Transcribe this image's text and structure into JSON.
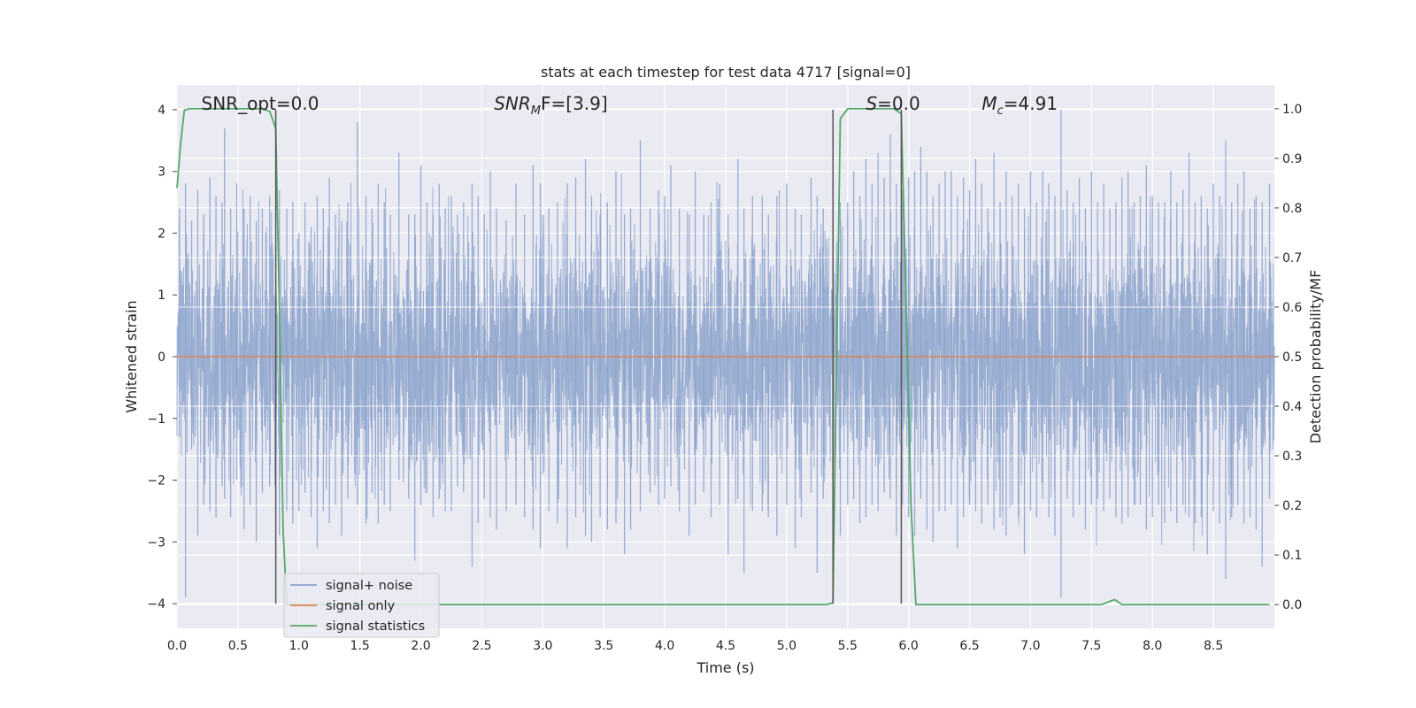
{
  "chart_data": {
    "type": "line",
    "title": "stats at each timestep for test data 4717 [signal=0]",
    "xlabel": "Time (s)",
    "ylabel_left": "Whitened strain",
    "ylabel_right": "Detection probability/MF",
    "xlim": [
      0,
      9
    ],
    "ylim_left": [
      -4.4,
      4.4
    ],
    "ylim_right": [
      -0.048,
      1.048
    ],
    "x_ticks": [
      "0.0",
      "0.5",
      "1.0",
      "1.5",
      "2.0",
      "2.5",
      "3.0",
      "3.5",
      "4.0",
      "4.5",
      "5.0",
      "5.5",
      "6.0",
      "6.5",
      "7.0",
      "7.5",
      "8.0",
      "8.5"
    ],
    "y_ticks_left": [
      "4",
      "3",
      "2",
      "1",
      "0",
      "−1",
      "−2",
      "−3",
      "−4"
    ],
    "y_ticks_right": [
      "1.0",
      "0.9",
      "0.8",
      "0.7",
      "0.6",
      "0.5",
      "0.4",
      "0.3",
      "0.2",
      "0.1",
      "0.0"
    ],
    "grid": true,
    "legend_position": "lower-left",
    "annotations": [
      {
        "main": "SNR_opt=0.0",
        "sub": "",
        "tail": "",
        "italic": false,
        "x": 0.2
      },
      {
        "main": "SNR",
        "sub": "M",
        "tail": "F=[3.9]",
        "italic": true,
        "x": 2.6
      },
      {
        "main": "S",
        "sub": "",
        "tail": "=0.0",
        "italic": true,
        "x": 5.65
      },
      {
        "main": "M",
        "sub": "c",
        "tail": "=4.91",
        "italic": true,
        "x": 6.6
      }
    ],
    "vlines": [
      {
        "x": 0.81,
        "ymin": -4,
        "ymax": 4
      },
      {
        "x": 5.38,
        "ymin": -4,
        "ymax": 4
      },
      {
        "x": 5.94,
        "ymin": -4,
        "ymax": 4
      }
    ],
    "series": [
      {
        "name": "signal+ noise",
        "color": "#8da4cd",
        "note_values": "dense white-noise trace, sample of envelope",
        "values": [
          [
            0.02,
            2.4,
            -1.3
          ],
          [
            0.07,
            2.8,
            -3.9
          ],
          [
            0.12,
            2.2,
            -1.5
          ],
          [
            0.17,
            2.7,
            -2.9
          ],
          [
            0.22,
            2.3,
            -2.4
          ],
          [
            0.27,
            2.9,
            -2.5
          ],
          [
            0.32,
            2.6,
            -2.6
          ],
          [
            0.37,
            2.5,
            -2.1
          ],
          [
            0.39,
            3.7,
            -2.3
          ],
          [
            0.44,
            2.4,
            -2.6
          ],
          [
            0.49,
            2.8,
            -2.0
          ],
          [
            0.55,
            2.4,
            -2.8
          ],
          [
            0.6,
            2.6,
            -2.4
          ],
          [
            0.65,
            2.2,
            -3.0
          ],
          [
            0.7,
            2.4,
            -2.2
          ],
          [
            0.76,
            2.6,
            -2.1
          ],
          [
            0.84,
            2.7,
            -2.9
          ],
          [
            0.9,
            2.4,
            -2.5
          ],
          [
            0.95,
            2.5,
            -2.7
          ],
          [
            1.0,
            2.0,
            -2.5
          ],
          [
            1.05,
            2.5,
            -2.2
          ],
          [
            1.1,
            2.1,
            -2.6
          ],
          [
            1.15,
            2.6,
            -3.1
          ],
          [
            1.2,
            2.4,
            -2.5
          ],
          [
            1.25,
            2.9,
            -2.7
          ],
          [
            1.3,
            2.3,
            -2.4
          ],
          [
            1.35,
            2.2,
            -2.9
          ],
          [
            1.4,
            2.5,
            -2.3
          ],
          [
            1.48,
            3.8,
            -2.4
          ],
          [
            1.55,
            2.6,
            -2.7
          ],
          [
            1.6,
            2.4,
            -2.2
          ],
          [
            1.65,
            2.8,
            -2.7
          ],
          [
            1.7,
            2.5,
            -2.4
          ],
          [
            1.75,
            2.3,
            -2.5
          ],
          [
            1.82,
            3.3,
            -2.0
          ],
          [
            1.9,
            2.3,
            -2.3
          ],
          [
            1.95,
            2.3,
            -3.3
          ],
          [
            2.0,
            3.1,
            -2.4
          ],
          [
            2.05,
            2.5,
            -2.2
          ],
          [
            2.1,
            2.3,
            -2.6
          ],
          [
            2.15,
            2.8,
            -2.3
          ],
          [
            2.2,
            2.4,
            -2.5
          ],
          [
            2.25,
            2.6,
            -2.5
          ],
          [
            2.3,
            2.3,
            -2.1
          ],
          [
            2.35,
            2.5,
            -2.2
          ],
          [
            2.42,
            2.8,
            -3.4
          ],
          [
            2.47,
            2.6,
            -2.7
          ],
          [
            2.52,
            2.3,
            -2.3
          ],
          [
            2.57,
            3.0,
            -2.6
          ],
          [
            2.62,
            2.4,
            -2.8
          ],
          [
            2.7,
            2.2,
            -2.5
          ],
          [
            2.78,
            2.8,
            -2.4
          ],
          [
            2.85,
            2.3,
            -2.6
          ],
          [
            2.92,
            3.1,
            -2.8
          ],
          [
            2.98,
            2.8,
            -3.1
          ],
          [
            3.05,
            2.4,
            -2.5
          ],
          [
            3.12,
            2.5,
            -2.7
          ],
          [
            3.2,
            2.8,
            -3.1
          ],
          [
            3.27,
            2.9,
            -2.6
          ],
          [
            3.35,
            3.2,
            -2.9
          ],
          [
            3.4,
            2.6,
            -3.0
          ],
          [
            3.47,
            2.3,
            -2.6
          ],
          [
            3.53,
            2.5,
            -2.8
          ],
          [
            3.6,
            3.0,
            -2.7
          ],
          [
            3.67,
            2.3,
            -3.2
          ],
          [
            3.72,
            2.4,
            -2.8
          ],
          [
            3.8,
            3.5,
            -2.5
          ],
          [
            3.88,
            2.4,
            -2.2
          ],
          [
            3.95,
            2.7,
            -2.4
          ],
          [
            4.0,
            2.6,
            -2.3
          ],
          [
            4.05,
            3.1,
            -2.1
          ],
          [
            4.12,
            2.4,
            -2.5
          ],
          [
            4.2,
            2.3,
            -2.9
          ],
          [
            4.25,
            3.0,
            -2.4
          ],
          [
            4.32,
            2.3,
            -2.2
          ],
          [
            4.38,
            2.5,
            -2.6
          ],
          [
            4.45,
            2.8,
            -2.4
          ],
          [
            4.52,
            2.3,
            -3.2
          ],
          [
            4.6,
            3.2,
            -2.3
          ],
          [
            4.65,
            2.4,
            -3.5
          ],
          [
            4.72,
            2.6,
            -2.5
          ],
          [
            4.8,
            2.6,
            -2.5
          ],
          [
            4.85,
            2.3,
            -2.6
          ],
          [
            4.92,
            2.6,
            -2.9
          ],
          [
            5.0,
            2.8,
            -2.4
          ],
          [
            5.07,
            2.4,
            -3.1
          ],
          [
            5.12,
            2.3,
            -2.6
          ],
          [
            5.2,
            2.9,
            -2.2
          ],
          [
            5.25,
            2.6,
            -3.5
          ],
          [
            5.3,
            2.4,
            -2.3
          ],
          [
            5.38,
            2.5,
            -2.7
          ],
          [
            5.44,
            2.5,
            -2.9
          ],
          [
            5.5,
            2.5,
            -2.4
          ],
          [
            5.55,
            3.0,
            -2.3
          ],
          [
            5.6,
            2.6,
            -2.7
          ],
          [
            5.65,
            3.2,
            -2.6
          ],
          [
            5.7,
            2.8,
            -2.4
          ],
          [
            5.75,
            3.3,
            -2.5
          ],
          [
            5.8,
            2.9,
            -2.2
          ],
          [
            5.85,
            3.6,
            -2.3
          ],
          [
            5.9,
            2.8,
            -2.9
          ],
          [
            5.95,
            2.7,
            -2.4
          ],
          [
            6.0,
            2.9,
            -2.6
          ],
          [
            6.05,
            3.0,
            -2.9
          ],
          [
            6.1,
            3.4,
            -2.3
          ],
          [
            6.15,
            3.0,
            -2.8
          ],
          [
            6.2,
            2.6,
            -3.0
          ],
          [
            6.25,
            2.8,
            -2.5
          ],
          [
            6.3,
            3.0,
            -2.5
          ],
          [
            6.35,
            3.0,
            -2.4
          ],
          [
            6.4,
            2.6,
            -3.1
          ],
          [
            6.45,
            2.9,
            -2.6
          ],
          [
            6.5,
            2.7,
            -2.4
          ],
          [
            6.55,
            3.2,
            -2.5
          ],
          [
            6.6,
            2.8,
            -2.7
          ],
          [
            6.65,
            2.4,
            -2.4
          ],
          [
            6.7,
            3.3,
            -2.8
          ],
          [
            6.75,
            2.5,
            -2.6
          ],
          [
            6.8,
            3.0,
            -2.9
          ],
          [
            6.85,
            2.6,
            -2.4
          ],
          [
            6.9,
            2.8,
            -2.6
          ],
          [
            6.95,
            2.4,
            -3.2
          ],
          [
            7.0,
            3.0,
            -2.5
          ],
          [
            7.05,
            2.5,
            -2.6
          ],
          [
            7.1,
            3.0,
            -2.3
          ],
          [
            7.15,
            2.8,
            -2.6
          ],
          [
            7.2,
            2.6,
            -2.9
          ],
          [
            7.25,
            4.0,
            -3.9
          ],
          [
            7.3,
            2.7,
            -2.3
          ],
          [
            7.35,
            2.5,
            -2.6
          ],
          [
            7.4,
            2.9,
            -2.4
          ],
          [
            7.45,
            2.4,
            -2.8
          ],
          [
            7.5,
            3.0,
            -2.4
          ],
          [
            7.55,
            2.5,
            -2.3
          ],
          [
            7.6,
            2.8,
            -2.5
          ],
          [
            7.65,
            2.4,
            -2.3
          ],
          [
            7.7,
            2.5,
            -2.6
          ],
          [
            7.75,
            2.9,
            -2.7
          ],
          [
            7.8,
            3.0,
            -2.6
          ],
          [
            7.85,
            2.5,
            -2.4
          ],
          [
            7.9,
            2.6,
            -2.4
          ],
          [
            7.95,
            3.1,
            -2.8
          ],
          [
            8.0,
            2.6,
            -2.6
          ],
          [
            8.05,
            2.5,
            -2.4
          ],
          [
            8.1,
            2.5,
            -2.7
          ],
          [
            8.15,
            3.0,
            -2.5
          ],
          [
            8.2,
            2.5,
            -2.7
          ],
          [
            8.25,
            2.7,
            -2.4
          ],
          [
            8.3,
            3.3,
            -2.6
          ],
          [
            8.35,
            2.5,
            -2.7
          ],
          [
            8.4,
            2.6,
            -2.6
          ],
          [
            8.45,
            2.4,
            -3.2
          ],
          [
            8.5,
            2.8,
            -2.5
          ],
          [
            8.55,
            2.6,
            -2.7
          ],
          [
            8.6,
            3.5,
            -3.6
          ],
          [
            8.65,
            2.5,
            -2.6
          ],
          [
            8.7,
            2.8,
            -2.4
          ],
          [
            8.75,
            3.0,
            -2.7
          ],
          [
            8.8,
            2.4,
            -2.6
          ],
          [
            8.85,
            2.6,
            -2.8
          ],
          [
            8.9,
            2.5,
            -3.4
          ],
          [
            8.96,
            2.8,
            -2.3
          ]
        ]
      },
      {
        "name": "signal only",
        "color": "#dd8452",
        "values": [
          [
            0,
            0
          ],
          [
            9,
            0
          ]
        ]
      },
      {
        "name": "signal statistics",
        "color": "#55a868",
        "axis": "right",
        "values": [
          [
            0.0,
            0.84
          ],
          [
            0.03,
            0.93
          ],
          [
            0.06,
            0.997
          ],
          [
            0.1,
            1.0
          ],
          [
            0.7,
            1.0
          ],
          [
            0.76,
            0.995
          ],
          [
            0.81,
            0.96
          ],
          [
            0.84,
            0.6
          ],
          [
            0.87,
            0.15
          ],
          [
            0.9,
            0.0
          ],
          [
            5.32,
            0.0
          ],
          [
            5.38,
            0.003
          ],
          [
            5.41,
            0.5
          ],
          [
            5.44,
            0.98
          ],
          [
            5.5,
            1.0
          ],
          [
            5.88,
            1.0
          ],
          [
            5.94,
            0.99
          ],
          [
            5.98,
            0.6
          ],
          [
            6.02,
            0.2
          ],
          [
            6.06,
            0.0
          ],
          [
            7.58,
            0.0
          ],
          [
            7.69,
            0.01
          ],
          [
            7.75,
            0.0
          ],
          [
            8.96,
            0.0
          ]
        ]
      }
    ]
  }
}
